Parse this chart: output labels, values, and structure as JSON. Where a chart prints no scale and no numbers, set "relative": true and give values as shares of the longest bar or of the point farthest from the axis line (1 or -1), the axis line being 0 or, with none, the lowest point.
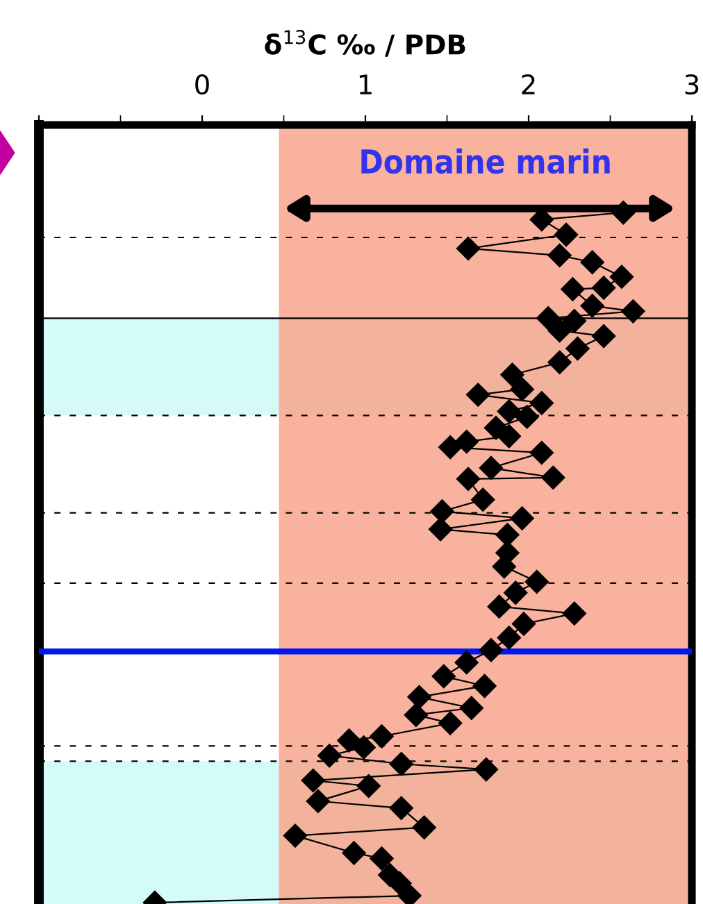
{
  "chart_data": {
    "type": "line",
    "relative": true,
    "xlabel": "δ$^{13}$C ‰ / PDB",
    "series": [
      {
        "color": "#000000",
        "x": [
          2.58,
          2.08,
          2.23,
          1.63,
          2.19,
          2.39,
          2.57,
          2.46,
          2.27,
          2.39,
          2.64,
          2.12,
          2.28,
          2.19,
          2.46,
          2.3,
          2.19,
          1.9,
          1.96,
          1.69,
          2.08,
          1.88,
          1.99,
          1.8,
          1.88,
          1.62,
          1.52,
          2.08,
          1.77,
          2.15,
          1.63,
          1.72,
          1.47,
          1.96,
          1.46,
          1.87,
          1.87,
          1.85,
          2.05,
          1.92,
          1.82,
          2.28,
          1.97,
          1.88,
          1.77,
          1.62,
          1.48,
          1.73,
          1.33,
          1.65,
          1.31,
          1.52,
          1.1,
          0.9,
          0.99,
          0.78,
          1.22,
          1.74,
          0.68,
          1.02,
          0.71,
          1.22,
          1.36,
          0.57,
          0.93,
          1.1,
          1.15,
          1.21,
          1.27,
          -0.29
        ],
        "values": [
          1.0,
          0.99,
          0.968,
          0.948,
          0.938,
          0.928,
          0.907,
          0.891,
          0.889,
          0.865,
          0.857,
          0.847,
          0.843,
          0.829,
          0.821,
          0.803,
          0.783,
          0.765,
          0.744,
          0.736,
          0.724,
          0.712,
          0.704,
          0.688,
          0.676,
          0.668,
          0.66,
          0.652,
          0.63,
          0.616,
          0.614,
          0.584,
          0.567,
          0.557,
          0.541,
          0.533,
          0.507,
          0.487,
          0.465,
          0.449,
          0.429,
          0.419,
          0.404,
          0.384,
          0.366,
          0.348,
          0.328,
          0.314,
          0.298,
          0.282,
          0.272,
          0.26,
          0.241,
          0.235,
          0.225,
          0.213,
          0.201,
          0.193,
          0.177,
          0.169,
          0.147,
          0.137,
          0.109,
          0.097,
          0.072,
          0.064,
          0.04,
          0.028,
          0.01,
          0.0
        ]
      }
    ],
    "xlim": [
      -1,
      3
    ],
    "xticks": [
      {
        "value": -1,
        "label": null
      },
      0,
      1,
      2,
      3
    ],
    "tick_labels": "x",
    "grid": false,
    "marker": "diamond",
    "line_style": "solid",
    "bands": [
      {
        "axis": "y",
        "from": 0.706,
        "to": 0.847,
        "color": "#d5fbf9"
      },
      {
        "axis": "y",
        "from": -0.002,
        "to": 0.205,
        "color": "#d5fbf9"
      },
      {
        "axis": "x",
        "from": 0.47,
        "to": 3,
        "color": "#f7a58c",
        "label": "Domaine marin"
      }
    ],
    "ref_lines": [
      {
        "axis": "y",
        "value": 0.964,
        "color": "#000000",
        "line_style": "dashed"
      },
      {
        "axis": "y",
        "value": 0.847,
        "color": "#000000",
        "line_style": "solid"
      },
      {
        "axis": "y",
        "value": 0.706,
        "color": "#000000",
        "line_style": "dashed"
      },
      {
        "axis": "y",
        "value": 0.565,
        "color": "#000000",
        "line_style": "dashed"
      },
      {
        "axis": "y",
        "value": 0.463,
        "color": "#000000",
        "line_style": "dashed"
      },
      {
        "axis": "y",
        "value": 0.364,
        "color": "#0018f0",
        "line_style": "solid"
      },
      {
        "axis": "y",
        "value": 0.227,
        "color": "#000000",
        "line_style": "dashed"
      },
      {
        "axis": "y",
        "value": 0.205,
        "color": "#000000",
        "line_style": "dashed"
      }
    ]
  }
}
